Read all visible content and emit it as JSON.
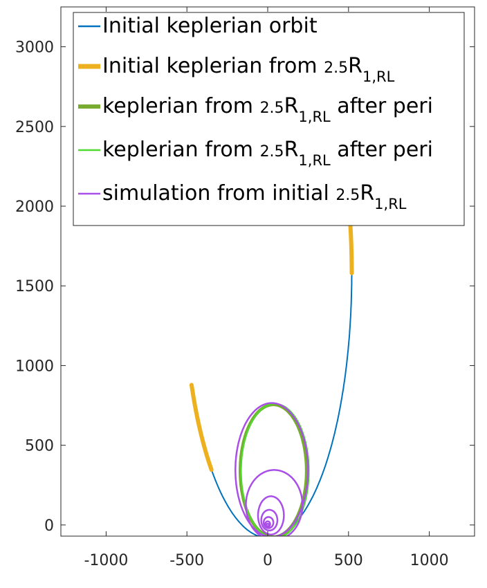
{
  "chart_data": {
    "type": "line",
    "xlim": [
      -1280,
      1280
    ],
    "ylim": [
      -70,
      3250
    ],
    "xticks": [
      -1000,
      -500,
      0,
      500,
      1000
    ],
    "yticks": [
      0,
      500,
      1000,
      1500,
      2000,
      2500,
      3000
    ],
    "xtick_labels": [
      "-1000",
      "-500",
      "0",
      "500",
      "1000"
    ],
    "ytick_labels": [
      "0",
      "500",
      "1000",
      "1500",
      "2000",
      "2500",
      "3000"
    ],
    "grid": false,
    "legend_position": "top",
    "colors": {
      "initial_orbit": "#0072BD",
      "initial_from": "#EDB120",
      "after_peri_thick": "#77AC30",
      "after_peri_thin": "#4DDB2E",
      "simulation": "#A94FE8"
    },
    "legend": [
      {
        "main": "Initial keplerian orbit",
        "parts": []
      },
      {
        "main": "Initial keplerian from ",
        "small": "2.5",
        "r": "R",
        "sub": "1,RL",
        "tail": ""
      },
      {
        "main": "keplerian from ",
        "small": "2.5",
        "r": "R",
        "sub": "1,RL",
        "tail": " after peri"
      },
      {
        "main": "keplerian from ",
        "small": "2.5",
        "r": "R",
        "sub": "1,RL",
        "tail": " after peri"
      },
      {
        "main": "simulation from initial ",
        "small": "2.5",
        "r": "R",
        "sub": "1,RL",
        "tail": ""
      }
    ],
    "series": [
      {
        "name": "Initial keplerian orbit",
        "kind": "ellipse",
        "cx": 0,
        "cy": 1580,
        "rx": 520,
        "ry": 1660,
        "from_deg": 228,
        "to_deg": 360
      },
      {
        "name": "Initial keplerian from 2.5R1,RL",
        "kind": "ellipse",
        "cx": 0,
        "cy": 1580,
        "rx": 520,
        "ry": 1660,
        "from_deg": 0,
        "to_deg": 47
      },
      {
        "name": "Initial keplerian from 2.5R1,RL",
        "kind": "ellipse",
        "cx": 0,
        "cy": 1580,
        "rx": 520,
        "ry": 1660,
        "from_deg": 205,
        "to_deg": 228
      },
      {
        "name": "keplerian from 2.5R1,RL after peri",
        "kind": "ellipse",
        "cx": 35,
        "cy": 340,
        "rx": 205,
        "ry": 415,
        "from_deg": 0,
        "to_deg": 360
      },
      {
        "name": "keplerian from 2.5R1,RL after peri",
        "kind": "ellipse",
        "cx": 45,
        "cy": 338,
        "rx": 210,
        "ry": 422,
        "from_deg": 0,
        "to_deg": 360
      },
      {
        "name": "simulation from initial 2.5R1,RL",
        "kind": "ellipse",
        "cx": 25,
        "cy": 345,
        "rx": 225,
        "ry": 420,
        "from_deg": 0,
        "to_deg": 360
      },
      {
        "name": "simulation from initial 2.5R1,RL",
        "kind": "ellipse",
        "cx": 40,
        "cy": 125,
        "rx": 175,
        "ry": 220,
        "from_deg": 0,
        "to_deg": 360
      },
      {
        "name": "simulation from initial 2.5R1,RL",
        "kind": "ellipse",
        "cx": 20,
        "cy": 60,
        "rx": 80,
        "ry": 120,
        "from_deg": 0,
        "to_deg": 360
      },
      {
        "name": "simulation from initial 2.5R1,RL",
        "kind": "ellipse",
        "cx": 10,
        "cy": 30,
        "rx": 50,
        "ry": 65,
        "from_deg": 0,
        "to_deg": 360
      },
      {
        "name": "simulation from initial 2.5R1,RL",
        "kind": "ellipse",
        "cx": 5,
        "cy": 15,
        "rx": 30,
        "ry": 35,
        "from_deg": 0,
        "to_deg": 360
      },
      {
        "name": "simulation from initial 2.5R1,RL",
        "kind": "ellipse",
        "cx": 0,
        "cy": 5,
        "rx": 15,
        "ry": 18,
        "from_deg": 0,
        "to_deg": 360
      },
      {
        "name": "simulation from initial 2.5R1,RL",
        "kind": "ellipse",
        "cx": 0,
        "cy": 0,
        "rx": 8,
        "ry": 8,
        "from_deg": 0,
        "to_deg": 360
      }
    ]
  }
}
